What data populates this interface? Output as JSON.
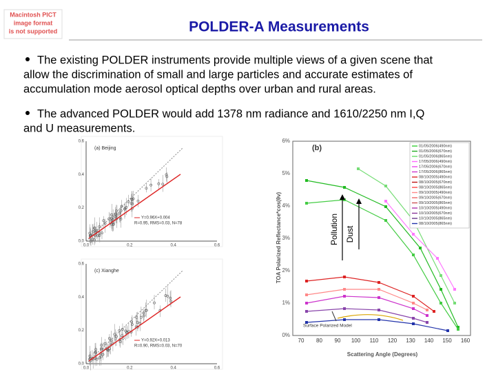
{
  "header": {
    "title": "POLDER-A Measurements",
    "placeholder": [
      "Macintosh PICT",
      "image format",
      "is not supported"
    ]
  },
  "bullets": [
    [
      "The existing POLDER instruments provide multiple views of a given scene that",
      "allow the discrimination of small and large particles and accurate estimates of",
      "accumulation mode aerosol optical depths over urban and rural areas."
    ],
    [
      "The advanced POLDER would add 1378 nm radiance and 1610/2250 nm I,Q",
      "and U measurements."
    ]
  ],
  "left_panels": [
    {
      "label": "(a) Beijing",
      "equation": "Y=0.96X+0.004",
      "stats": "R=0.95, RMS=0.03, N=78",
      "xticks": [
        "0.0",
        "0.2",
        "0.4",
        "0.6"
      ],
      "yticks": [
        "0.0",
        "0.2",
        "0.4",
        "0.6"
      ]
    },
    {
      "label": "(c) Xianghe",
      "equation": "Y=0.92X+0.013",
      "stats": "R=0.90, RMS=0.03, N=70",
      "xticks": [
        "0.0",
        "0.2",
        "0.4",
        "0.6"
      ],
      "yticks": [
        "0.0",
        "0.2",
        "0.4",
        "0.6"
      ]
    }
  ],
  "right_panel": {
    "label": "(b)",
    "ylabel": "TOA Polarized Reflectance*cos(θv)",
    "xlabel": "Scattering Angle (Degrees)",
    "yticks": [
      "0%",
      "1%",
      "2%",
      "3%",
      "4%",
      "5%",
      "6%"
    ],
    "xticks": [
      70,
      80,
      90,
      100,
      110,
      120,
      130,
      140,
      150,
      160
    ],
    "annotation": "Surface Polarized Model",
    "legend": [
      {
        "name": "01/05/2006(490nm)",
        "color": "#33cc33"
      },
      {
        "name": "01/05/2006(670nm)",
        "color": "#22aa22"
      },
      {
        "name": "01/05/2006(865nm)",
        "color": "#66dd66"
      },
      {
        "name": "17/05/2006(490nm)",
        "color": "#ff66ff"
      },
      {
        "name": "17/05/2006(670nm)",
        "color": "#ee44ee"
      },
      {
        "name": "17/05/2006(865nm)",
        "color": "#cc33cc"
      },
      {
        "name": "08/10/2005(490nm)",
        "color": "#dd2222"
      },
      {
        "name": "08/10/2005(670nm)",
        "color": "#bb1111"
      },
      {
        "name": "08/10/2005(865nm)",
        "color": "#ff4444"
      },
      {
        "name": "09/10/2005(490nm)",
        "color": "#ff8888"
      },
      {
        "name": "09/10/2005(670nm)",
        "color": "#ee6666"
      },
      {
        "name": "09/10/2005(865nm)",
        "color": "#cc5555"
      },
      {
        "name": "10/10/2005(490nm)",
        "color": "#aa33aa"
      },
      {
        "name": "10/10/2005(670nm)",
        "color": "#883399"
      },
      {
        "name": "10/10/2005(865nm)",
        "color": "#663388"
      },
      {
        "name": "08/10/2005(865nm)",
        "color": "#2233aa"
      }
    ]
  },
  "annotations": {
    "pollution": "Pollution",
    "dust": "Dust"
  }
}
